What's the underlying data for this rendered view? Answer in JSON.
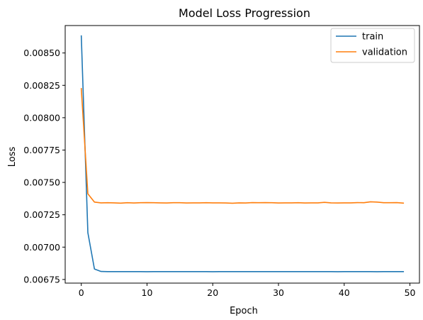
{
  "chart_data": {
    "type": "line",
    "title": "Model Loss Progression",
    "xlabel": "Epoch",
    "ylabel": "Loss",
    "xlim": [
      -2.45,
      51.45
    ],
    "ylim": [
      0.006722,
      0.008712
    ],
    "xticks": [
      0,
      10,
      20,
      30,
      40,
      50
    ],
    "xtick_labels": [
      "0",
      "10",
      "20",
      "30",
      "40",
      "50"
    ],
    "yticks": [
      0.00675,
      0.007,
      0.00725,
      0.0075,
      0.00775,
      0.008,
      0.00825,
      0.0085
    ],
    "ytick_labels": [
      "0.00675",
      "0.00700",
      "0.00725",
      "0.00750",
      "0.00775",
      "0.00800",
      "0.00825",
      "0.00850"
    ],
    "grid": false,
    "legend_position": "top-right",
    "x": [
      0,
      1,
      2,
      3,
      4,
      5,
      6,
      7,
      8,
      9,
      10,
      11,
      12,
      13,
      14,
      15,
      16,
      17,
      18,
      19,
      20,
      21,
      22,
      23,
      24,
      25,
      26,
      27,
      28,
      29,
      30,
      31,
      32,
      33,
      34,
      35,
      36,
      37,
      38,
      39,
      40,
      41,
      42,
      43,
      44,
      45,
      46,
      47,
      48,
      49
    ],
    "series": [
      {
        "name": "train",
        "color": "#1f77b4",
        "values": [
          0.008632,
          0.007112,
          0.006831,
          0.006812,
          0.006811,
          0.006811,
          0.006811,
          0.006811,
          0.006811,
          0.006811,
          0.00681,
          0.006811,
          0.006811,
          0.006811,
          0.006811,
          0.006811,
          0.006811,
          0.006811,
          0.006811,
          0.006811,
          0.00681,
          0.006811,
          0.006811,
          0.006811,
          0.006811,
          0.006811,
          0.006811,
          0.006811,
          0.006811,
          0.006811,
          0.006811,
          0.006811,
          0.006811,
          0.006811,
          0.006811,
          0.006811,
          0.006811,
          0.006811,
          0.006811,
          0.00681,
          0.006811,
          0.006811,
          0.006811,
          0.006811,
          0.006811,
          0.00681,
          0.006811,
          0.006811,
          0.006811,
          0.006811
        ]
      },
      {
        "name": "validation",
        "color": "#ff7f0e",
        "values": [
          0.008225,
          0.007412,
          0.007348,
          0.007342,
          0.007343,
          0.007342,
          0.00734,
          0.007343,
          0.007341,
          0.007343,
          0.007344,
          0.007343,
          0.007342,
          0.007341,
          0.007343,
          0.007343,
          0.007341,
          0.007342,
          0.007342,
          0.007343,
          0.007342,
          0.007342,
          0.007341,
          0.007339,
          0.007342,
          0.007341,
          0.007344,
          0.007343,
          0.007344,
          0.007343,
          0.007341,
          0.007342,
          0.007342,
          0.007343,
          0.007341,
          0.007342,
          0.007342,
          0.007346,
          0.007342,
          0.007341,
          0.007342,
          0.007342,
          0.007344,
          0.007343,
          0.00735,
          0.007348,
          0.007343,
          0.007343,
          0.007344,
          0.00734
        ]
      }
    ]
  }
}
